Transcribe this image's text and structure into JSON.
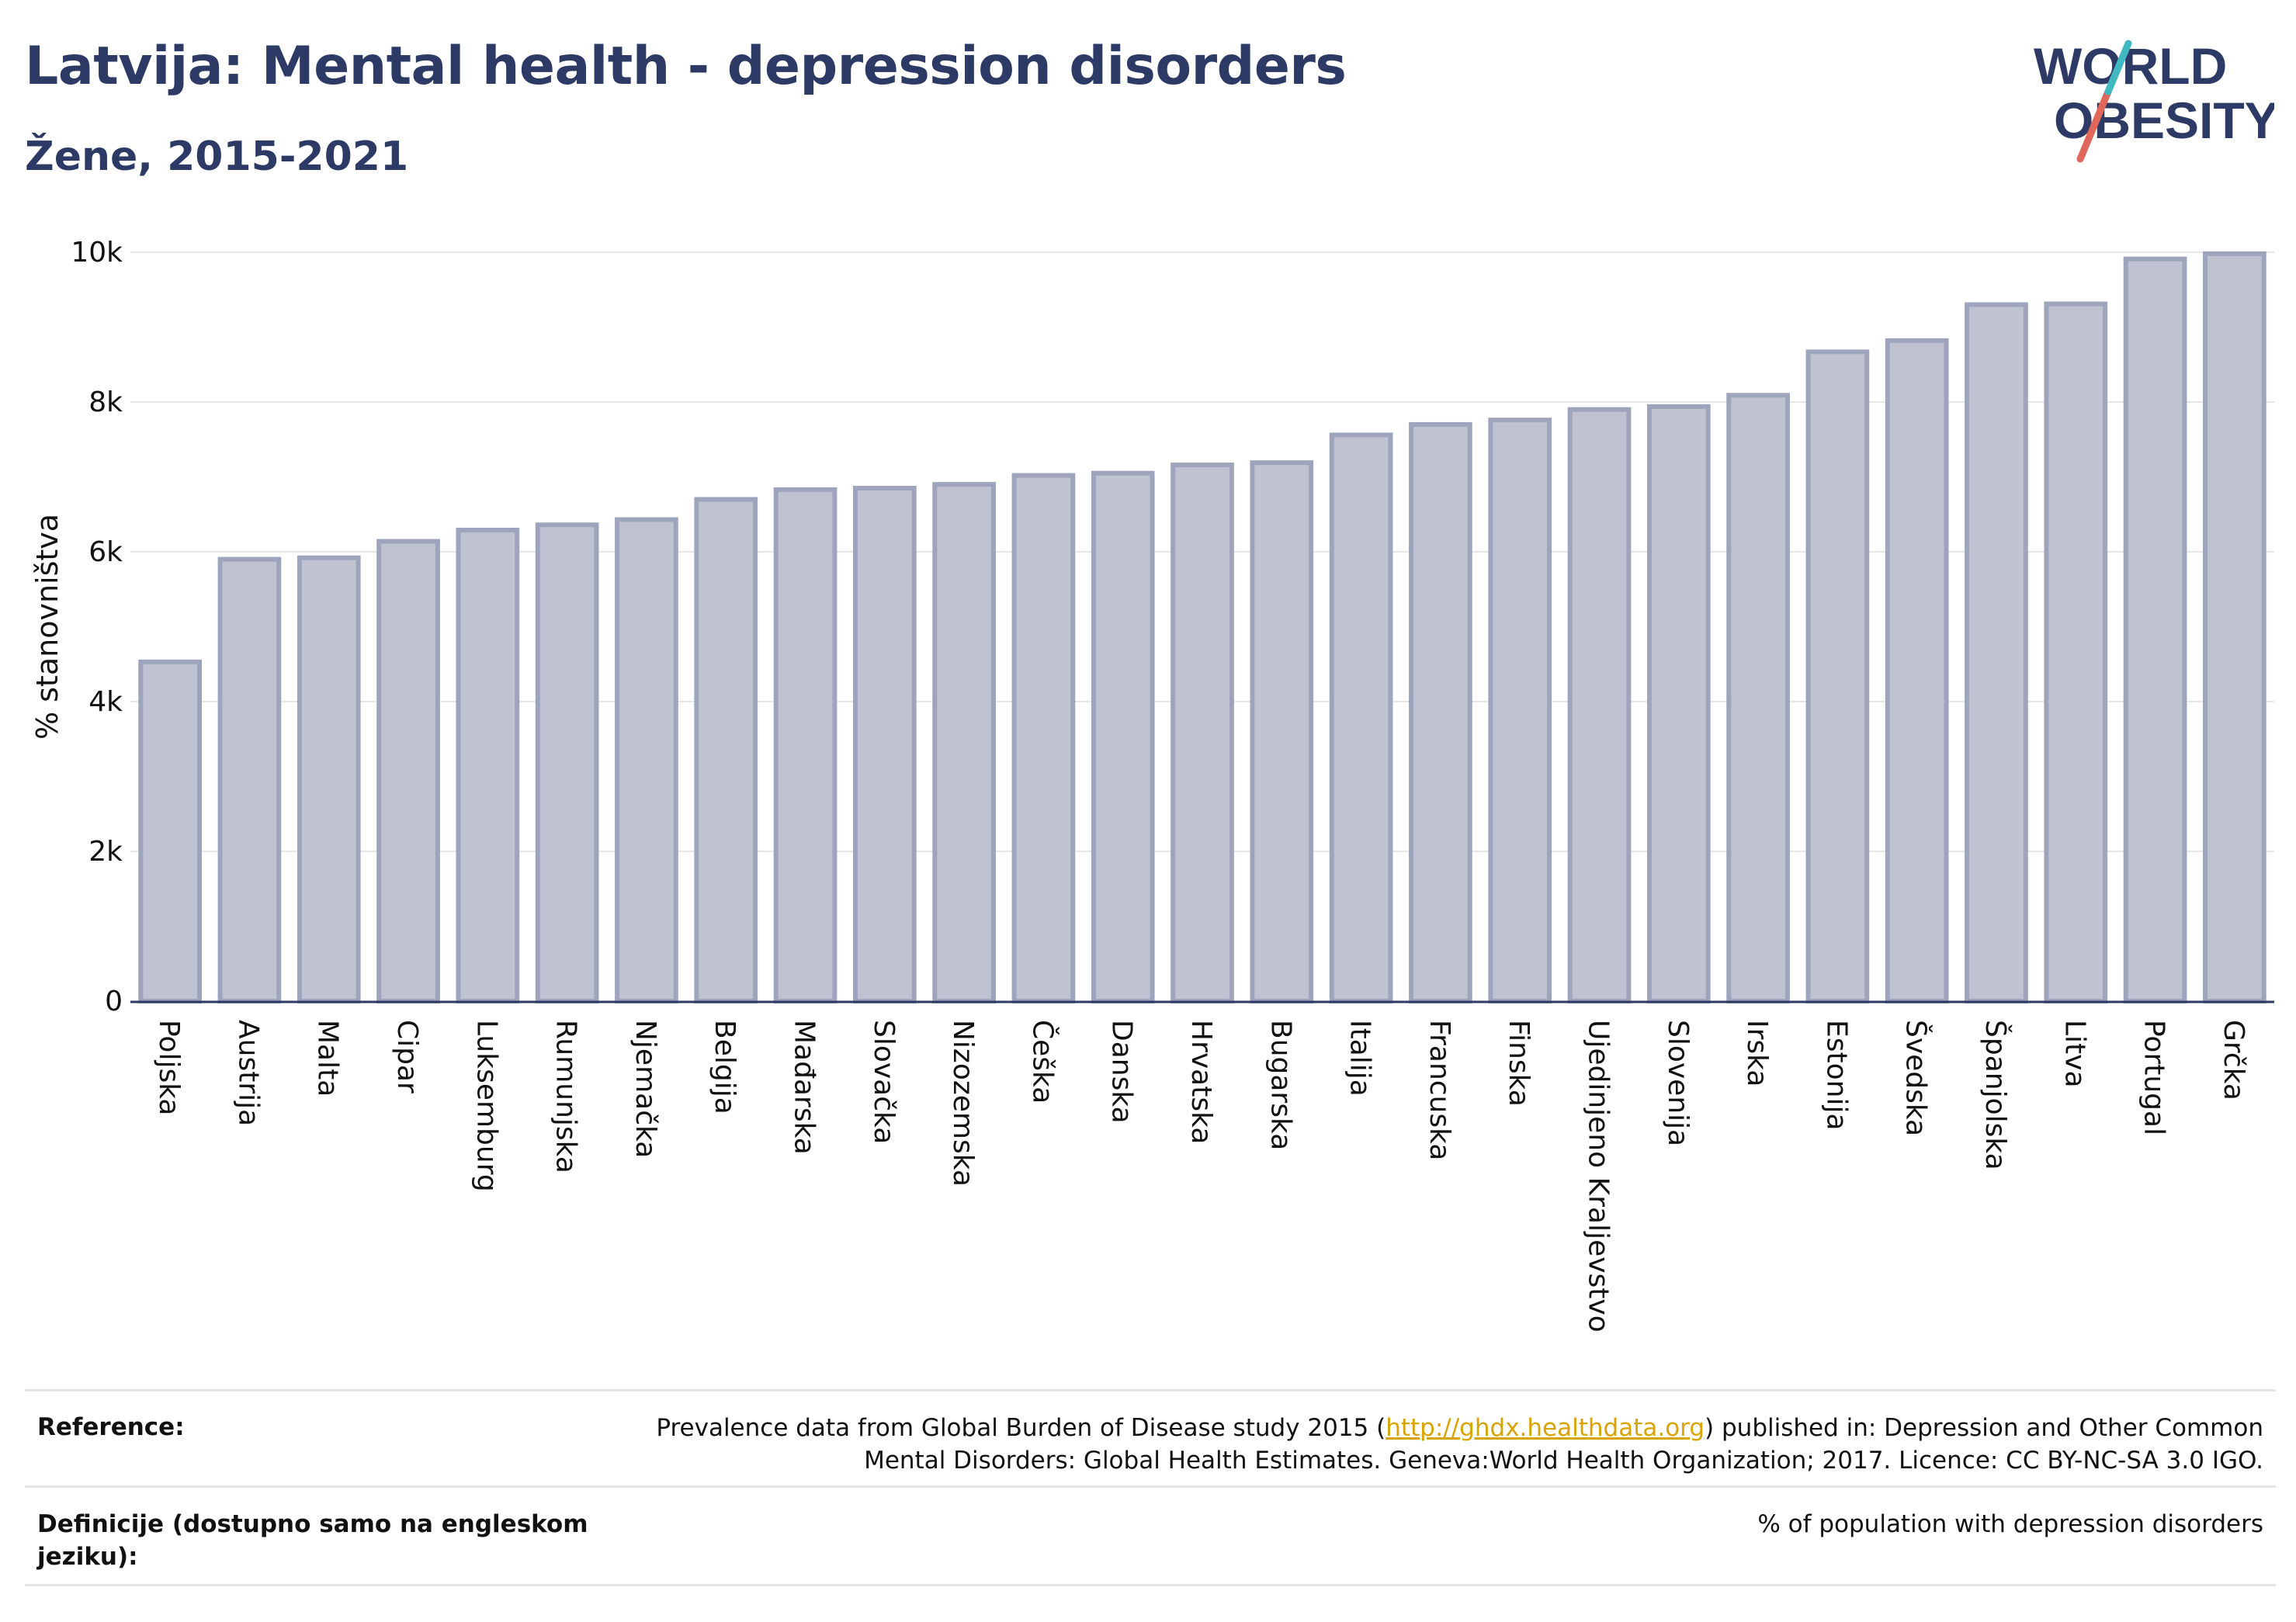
{
  "title": "Latvija: Mental health - depression disorders",
  "subtitle": "Žene, 2015-2021",
  "logo": {
    "line1": "WORLD",
    "line2": "OBESITY"
  },
  "chart_data": {
    "type": "bar",
    "ylabel": "% stanovništva",
    "ylim": [
      0,
      10000
    ],
    "yticks": [
      0,
      2000,
      4000,
      6000,
      8000,
      10000
    ],
    "ytick_labels": [
      "0",
      "2k",
      "4k",
      "6k",
      "8k",
      "10k"
    ],
    "grid": true,
    "bar_color": "#bfc3d1",
    "bar_edge_color": "#9ea4bb",
    "categories": [
      "Poljska",
      "Austrija",
      "Malta",
      "Cipar",
      "Luksemburg",
      "Rumunjska",
      "Njemačka",
      "Belgija",
      "Mađarska",
      "Slovačka",
      "Nizozemska",
      "Češka",
      "Danska",
      "Hrvatska",
      "Bugarska",
      "Italija",
      "Francuska",
      "Finska",
      "Ujedinjeno Kraljevstvo",
      "Slovenija",
      "Irska",
      "Estonija",
      "Švedska",
      "Španjolska",
      "Litva",
      "Portugal",
      "Grčka"
    ],
    "values": [
      4530,
      5900,
      5920,
      6140,
      6290,
      6360,
      6430,
      6700,
      6830,
      6850,
      6900,
      7020,
      7050,
      7160,
      7190,
      7560,
      7700,
      7760,
      7900,
      7940,
      8090,
      8670,
      8820,
      9300,
      9310,
      9910,
      9980
    ]
  },
  "footer": {
    "reference_label": "Reference:",
    "reference_text_1": "Prevalence data from Global Burden of Disease study 2015 (",
    "reference_link": "http://ghdx.healthdata.org",
    "reference_text_2": ") published in: Depression and Other Common",
    "reference_text_3": "Mental Disorders: Global Health Estimates. Geneva:World Health Organization; 2017. Licence: CC BY-NC-SA 3.0 IGO.",
    "definition_label": "Definicije (dostupno samo na engleskom jeziku):",
    "definition_text": "% of population with depression disorders"
  },
  "colors": {
    "title": "#2d3a66",
    "logo_red": "#e0675a",
    "logo_teal": "#3fb8c0",
    "link": "#d9a400"
  }
}
